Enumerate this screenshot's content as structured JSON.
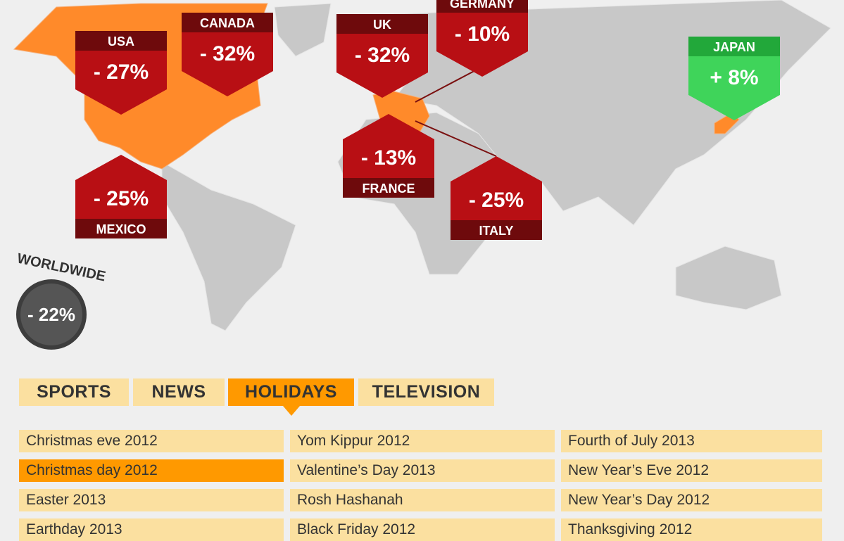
{
  "map": {
    "callouts": [
      {
        "country": "USA",
        "change": "- 27%"
      },
      {
        "country": "CANADA",
        "change": "- 32%"
      },
      {
        "country": "UK",
        "change": "- 32%"
      },
      {
        "country": "GERMANY",
        "change": "- 10%"
      },
      {
        "country": "JAPAN",
        "change": "+ 8%"
      },
      {
        "country": "MEXICO",
        "change": "- 25%"
      },
      {
        "country": "FRANCE",
        "change": "- 13%"
      },
      {
        "country": "ITALY",
        "change": "- 25%"
      }
    ],
    "worldwide": {
      "label": "WORLDWIDE",
      "change": "- 22%"
    }
  },
  "tabs": [
    "SPORTS",
    "NEWS",
    "HOLIDAYS",
    "TELEVISION"
  ],
  "items": [
    [
      "Christmas eve 2012",
      "Yom Kippur 2012",
      "Fourth of July 2013"
    ],
    [
      "Christmas day 2012",
      "Valentine’s Day 2013",
      "New Year’s Eve 2012"
    ],
    [
      "Easter 2013",
      "Rosh Hashanah",
      "New Year’s Day 2012"
    ],
    [
      "Earthday 2013",
      "Black Friday 2012",
      "Thanksgiving 2012"
    ]
  ]
}
